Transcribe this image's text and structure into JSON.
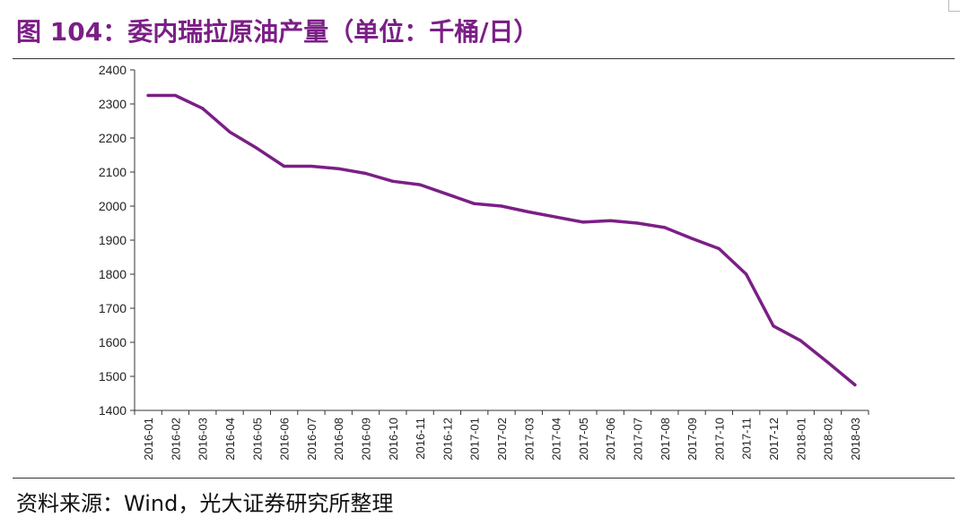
{
  "title": "图 104：委内瑞拉原油产量（单位：千桶/日）",
  "source": "资料来源：Wind，光大证券研究所整理",
  "colors": {
    "line": "#7b1f86",
    "title": "#7b1f86",
    "axis": "#333333"
  },
  "chart_data": {
    "type": "line",
    "title": "委内瑞拉原油产量（单位：千桶/日）",
    "xlabel": "",
    "ylabel": "",
    "ylim": [
      1400,
      2400
    ],
    "yticks": [
      1400,
      1500,
      1600,
      1700,
      1800,
      1900,
      2000,
      2100,
      2200,
      2300,
      2400
    ],
    "grid": false,
    "legend": "none",
    "categories": [
      "2016-01",
      "2016-02",
      "2016-03",
      "2016-04",
      "2016-05",
      "2016-06",
      "2016-07",
      "2016-08",
      "2016-09",
      "2016-10",
      "2016-11",
      "2016-12",
      "2017-01",
      "2017-02",
      "2017-03",
      "2017-04",
      "2017-05",
      "2017-06",
      "2017-07",
      "2017-08",
      "2017-09",
      "2017-10",
      "2017-11",
      "2017-12",
      "2018-01",
      "2018-02",
      "2018-03"
    ],
    "series": [
      {
        "values": [
          2325,
          2325,
          2287,
          2218,
          2170,
          2117,
          2117,
          2110,
          2096,
          2073,
          2063,
          2035,
          2007,
          2000,
          1983,
          1968,
          1953,
          1957,
          1950,
          1937,
          1905,
          1875,
          1800,
          1648,
          1605,
          1541,
          1475
        ]
      }
    ]
  }
}
